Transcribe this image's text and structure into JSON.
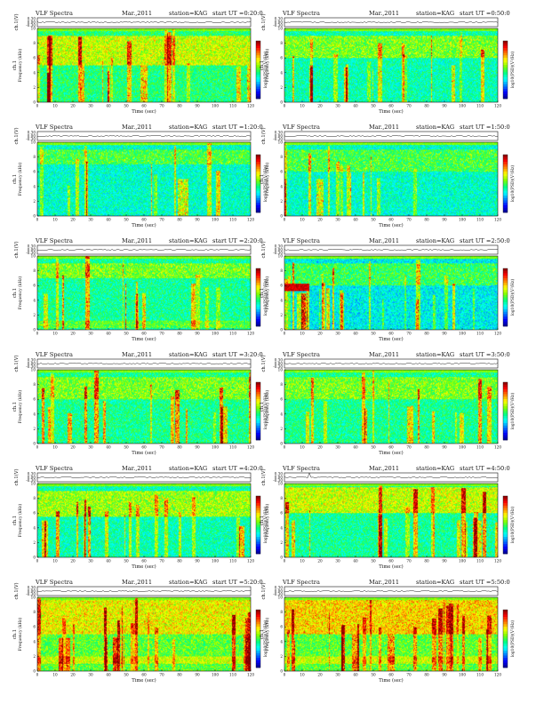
{
  "page": {
    "description_color": {
      "background": "#ffffff",
      "axis": "#111111"
    }
  },
  "colormap": {
    "name": "jet",
    "stops": [
      "#00008f",
      "#0000ff",
      "#0080ff",
      "#00ffff",
      "#00ff80",
      "#80ff00",
      "#ffff00",
      "#ff8000",
      "#ff0000",
      "#800000"
    ]
  },
  "chart_data": [
    {
      "type": "heatmap",
      "title": "VLF Spectra",
      "date": "Mar.,2011",
      "station": "station=KAG",
      "start": "start UT =0:20:0",
      "ylabel_top": "ch.1(V)",
      "ylabel_main": "ch.1 Frequency (kHz)",
      "xlabel": "Time (sec)",
      "xlim": [
        0,
        120
      ],
      "ylim": [
        0,
        10
      ],
      "top_ylim": [
        -0.3,
        0.3
      ],
      "top_ticks": [
        "0.30",
        "0.00",
        "-0.30"
      ],
      "xticks": [
        0,
        10,
        20,
        30,
        40,
        50,
        60,
        70,
        80,
        90,
        100,
        110,
        120
      ],
      "yticks": [
        0,
        2,
        4,
        6,
        8,
        10
      ],
      "colorbar_label": "log10(PSD)(V²/Hz)",
      "seed": 11,
      "band": [
        5,
        9
      ],
      "band_level": 0.62,
      "base_level": 0.45,
      "bursts": 16,
      "strong": [
        [
          60,
          2
        ],
        [
          120,
          2
        ]
      ]
    },
    {
      "type": "heatmap",
      "title": "VLF Spectra",
      "date": "Mar.,2011",
      "station": "station=KAG",
      "start": "start UT =0:50:0",
      "ylabel_top": "ch.1(V)",
      "ylabel_main": "ch.1 Frequency (kHz)",
      "xlabel": "Time (sec)",
      "xlim": [
        0,
        120
      ],
      "ylim": [
        0,
        10
      ],
      "top_ylim": [
        -0.3,
        0.3
      ],
      "top_ticks": [
        "0.30",
        "0.00",
        "-0.30"
      ],
      "xticks": [
        0,
        10,
        20,
        30,
        40,
        50,
        60,
        70,
        80,
        90,
        100,
        110,
        120
      ],
      "yticks": [
        0,
        2,
        4,
        6,
        8,
        10
      ],
      "colorbar_label": "log10(PSD)(V²/Hz)",
      "seed": 12,
      "band": [
        6,
        9
      ],
      "band_level": 0.55,
      "base_level": 0.4,
      "bursts": 14,
      "strong": [
        [
          15,
          1
        ],
        [
          95,
          1
        ]
      ]
    },
    {
      "type": "heatmap",
      "title": "VLF Spectra",
      "date": "Mar.,2011",
      "station": "station=KAG",
      "start": "start UT =1:20:0",
      "ylabel_top": "ch.1(V)",
      "ylabel_main": "ch.1 Frequency (kHz)",
      "xlabel": "Time (sec)",
      "xlim": [
        0,
        120
      ],
      "ylim": [
        0,
        10
      ],
      "top_ylim": [
        -0.3,
        0.3
      ],
      "top_ticks": [
        "0.30",
        "0.00",
        "-0.30"
      ],
      "xticks": [
        0,
        10,
        20,
        30,
        40,
        50,
        60,
        70,
        80,
        90,
        100,
        110,
        120
      ],
      "yticks": [
        0,
        2,
        4,
        6,
        8,
        10
      ],
      "colorbar_label": "log10(PSD)(V²/Hz)",
      "seed": 13,
      "band": [
        7,
        9
      ],
      "band_level": 0.5,
      "base_level": 0.38,
      "bursts": 10,
      "strong": [
        [
          82,
          3
        ]
      ]
    },
    {
      "type": "heatmap",
      "title": "VLF Spectra",
      "date": "Mar.,2011",
      "station": "station=KAG",
      "start": "start UT =1:50:0",
      "ylabel_top": "ch.1(V)",
      "ylabel_main": "ch.1 Frequency (kHz)",
      "xlabel": "Time (sec)",
      "xlim": [
        0,
        120
      ],
      "ylim": [
        0,
        10
      ],
      "top_ylim": [
        -0.3,
        0.3
      ],
      "top_ticks": [
        "0.30",
        "0.00",
        "-0.30"
      ],
      "xticks": [
        0,
        10,
        20,
        30,
        40,
        50,
        60,
        70,
        80,
        90,
        100,
        110,
        120
      ],
      "yticks": [
        0,
        2,
        4,
        6,
        8,
        10
      ],
      "colorbar_label": "log10(PSD)(V²/Hz)",
      "seed": 14,
      "band": [
        6,
        9
      ],
      "band_level": 0.5,
      "base_level": 0.38,
      "bursts": 12,
      "strong": [
        [
          20,
          2
        ]
      ]
    },
    {
      "type": "heatmap",
      "title": "VLF Spectra",
      "date": "Mar.,2011",
      "station": "station=KAG",
      "start": "start UT =2:20:0",
      "ylabel_top": "ch.1(V)",
      "ylabel_main": "ch.1 Frequency (kHz)",
      "xlabel": "Time (sec)",
      "xlim": [
        0,
        120
      ],
      "ylim": [
        0,
        10
      ],
      "top_ylim": [
        -0.3,
        0.3
      ],
      "top_ticks": [
        "0.30",
        "0.00",
        "-0.30"
      ],
      "xticks": [
        0,
        10,
        20,
        30,
        40,
        50,
        60,
        70,
        80,
        90,
        100,
        110,
        120
      ],
      "yticks": [
        0,
        2,
        4,
        6,
        8,
        10
      ],
      "colorbar_label": "log10(PSD)(V²/Hz)",
      "seed": 15,
      "band": [
        7,
        9
      ],
      "band_level": 0.55,
      "base_level": 0.42,
      "bursts": 12,
      "strong": [
        [
          60,
          1
        ]
      ],
      "low_band": [
        0.3,
        1.2
      ]
    },
    {
      "type": "heatmap",
      "title": "VLF Spectra",
      "date": "Mar.,2011",
      "station": "station=KAG",
      "start": "start UT =2:50:0",
      "ylabel_top": "ch.1(V)",
      "ylabel_main": "ch.1 Frequency (kHz)",
      "xlabel": "Time (sec)",
      "xlim": [
        0,
        120
      ],
      "ylim": [
        0,
        10
      ],
      "top_ylim": [
        -0.3,
        0.3
      ],
      "top_ticks": [
        "0.30",
        "0.00",
        "-0.30"
      ],
      "xticks": [
        0,
        10,
        20,
        30,
        40,
        50,
        60,
        70,
        80,
        90,
        100,
        110,
        120
      ],
      "yticks": [
        0,
        2,
        4,
        6,
        8,
        10
      ],
      "colorbar_label": "log10(PSD)(V²/Hz)",
      "seed": 16,
      "band": [
        6,
        9
      ],
      "band_level": 0.48,
      "base_level": 0.34,
      "bursts": 22,
      "strong": [
        [
          10,
          3
        ]
      ],
      "hot_rect": [
        0,
        14,
        5.3,
        6.3
      ]
    },
    {
      "type": "heatmap",
      "title": "VLF Spectra",
      "date": "Mar.,2011",
      "station": "station=KAG",
      "start": "start UT =3:20:0",
      "ylabel_top": "ch.1(V)",
      "ylabel_main": "ch.1 Frequency (kHz)",
      "xlabel": "Time (sec)",
      "xlim": [
        0,
        120
      ],
      "ylim": [
        0,
        10
      ],
      "top_ylim": [
        -0.3,
        0.3
      ],
      "top_ticks": [
        "0.30",
        "0.00",
        "-0.30"
      ],
      "xticks": [
        0,
        10,
        20,
        30,
        40,
        50,
        60,
        70,
        80,
        90,
        100,
        110,
        120
      ],
      "yticks": [
        0,
        2,
        4,
        6,
        8,
        10
      ],
      "colorbar_label": "log10(PSD)(V²/Hz)",
      "seed": 17,
      "band": [
        6,
        9
      ],
      "band_level": 0.55,
      "base_level": 0.43,
      "bursts": 14,
      "strong": [
        [
          105,
          2
        ]
      ]
    },
    {
      "type": "heatmap",
      "title": "VLF Spectra",
      "date": "Mar.,2011",
      "station": "station=KAG",
      "start": "start UT =3:50:0",
      "ylabel_top": "ch.1(V)",
      "ylabel_main": "ch.1 Frequency (kHz)",
      "xlabel": "Time (sec)",
      "xlim": [
        0,
        120
      ],
      "ylim": [
        0,
        10
      ],
      "top_ylim": [
        -0.3,
        0.3
      ],
      "top_ticks": [
        "0.30",
        "0.00",
        "-0.30"
      ],
      "xticks": [
        0,
        10,
        20,
        30,
        40,
        50,
        60,
        70,
        80,
        90,
        100,
        110,
        120
      ],
      "yticks": [
        0,
        2,
        4,
        6,
        8,
        10
      ],
      "colorbar_label": "log10(PSD)(V²/Hz)",
      "seed": 18,
      "band": [
        6,
        9
      ],
      "band_level": 0.55,
      "base_level": 0.43,
      "bursts": 14,
      "strong": [
        [
          70,
          1
        ]
      ]
    },
    {
      "type": "heatmap",
      "title": "VLF Spectra",
      "date": "Mar.,2011",
      "station": "station=KAG",
      "start": "start UT =4:20:0",
      "ylabel_top": "ch.1(V)",
      "ylabel_main": "ch.1 Frequency (kHz)",
      "xlabel": "Time (sec)",
      "xlim": [
        0,
        120
      ],
      "ylim": [
        0,
        10
      ],
      "top_ylim": [
        -0.3,
        0.3
      ],
      "top_ticks": [
        "0.30",
        "0.00",
        "-0.30"
      ],
      "xticks": [
        0,
        10,
        20,
        30,
        40,
        50,
        60,
        70,
        80,
        90,
        100,
        110,
        120
      ],
      "yticks": [
        0,
        2,
        4,
        6,
        8,
        10
      ],
      "colorbar_label": "log10(PSD)(V²/Hz)",
      "seed": 19,
      "band": [
        5.5,
        9
      ],
      "band_level": 0.58,
      "base_level": 0.4,
      "bursts": 16,
      "strong": [
        [
          5,
          1
        ]
      ]
    },
    {
      "type": "heatmap",
      "title": "VLF Spectra",
      "date": "Mar.,2011",
      "station": "station=KAG",
      "start": "start UT =4:50:0",
      "ylabel_top": "ch.1(V)",
      "ylabel_main": "ch.1 Frequency (kHz)",
      "xlabel": "Time (sec)",
      "xlim": [
        0,
        120
      ],
      "ylim": [
        0,
        10
      ],
      "top_ylim": [
        -0.3,
        0.3
      ],
      "top_ticks": [
        "0.30",
        "0.00",
        "-0.30"
      ],
      "xticks": [
        0,
        10,
        20,
        30,
        40,
        50,
        60,
        70,
        80,
        90,
        100,
        110,
        120
      ],
      "yticks": [
        0,
        2,
        4,
        6,
        8,
        10
      ],
      "colorbar_label": "log10(PSD)(V²/Hz)",
      "seed": 20,
      "band": [
        6,
        9.5
      ],
      "band_level": 0.62,
      "base_level": 0.42,
      "bursts": 16,
      "strong": [
        [
          5,
          1
        ],
        [
          110,
          1
        ]
      ]
    },
    {
      "type": "heatmap",
      "title": "VLF Spectra",
      "date": "Mar.,2011",
      "station": "station=KAG",
      "start": "start UT =5:20:0",
      "ylabel_top": "ch.1(V)",
      "ylabel_main": "ch.1 Frequency (kHz)",
      "xlabel": "Time (sec)",
      "xlim": [
        0,
        120
      ],
      "ylim": [
        0,
        10
      ],
      "top_ylim": [
        -0.3,
        0.3
      ],
      "top_ticks": [
        "0.30",
        "0.00",
        "-0.30"
      ],
      "xticks": [
        0,
        10,
        20,
        30,
        40,
        50,
        60,
        70,
        80,
        90,
        100,
        110,
        120
      ],
      "yticks": [
        0,
        2,
        4,
        6,
        8,
        10
      ],
      "colorbar_label": "log10(PSD)(V²/Hz)",
      "seed": 21,
      "band": [
        5,
        10
      ],
      "band_level": 0.66,
      "base_level": 0.52,
      "bursts": 20,
      "strong": [
        [
          118,
          2
        ]
      ],
      "low_band": [
        1,
        2
      ]
    },
    {
      "type": "heatmap",
      "title": "VLF Spectra",
      "date": "Mar.,2011",
      "station": "station=KAG",
      "start": "start UT =5:50:0",
      "ylabel_top": "ch.1(V)",
      "ylabel_main": "ch.1 Frequency (kHz)",
      "xlabel": "Time (sec)",
      "xlim": [
        0,
        120
      ],
      "ylim": [
        0,
        10
      ],
      "top_ylim": [
        -0.3,
        0.3
      ],
      "top_ticks": [
        "0.30",
        "0.00",
        "-0.30"
      ],
      "xticks": [
        0,
        10,
        20,
        30,
        40,
        50,
        60,
        70,
        80,
        90,
        100,
        110,
        120
      ],
      "yticks": [
        0,
        2,
        4,
        6,
        8,
        10
      ],
      "colorbar_label": "log10(PSD)(V²/Hz)",
      "seed": 22,
      "band": [
        5,
        10
      ],
      "band_level": 0.7,
      "base_level": 0.52,
      "bursts": 22,
      "strong": [
        [
          40,
          2
        ],
        [
          60,
          2
        ]
      ],
      "low_band": [
        1,
        2
      ]
    }
  ]
}
